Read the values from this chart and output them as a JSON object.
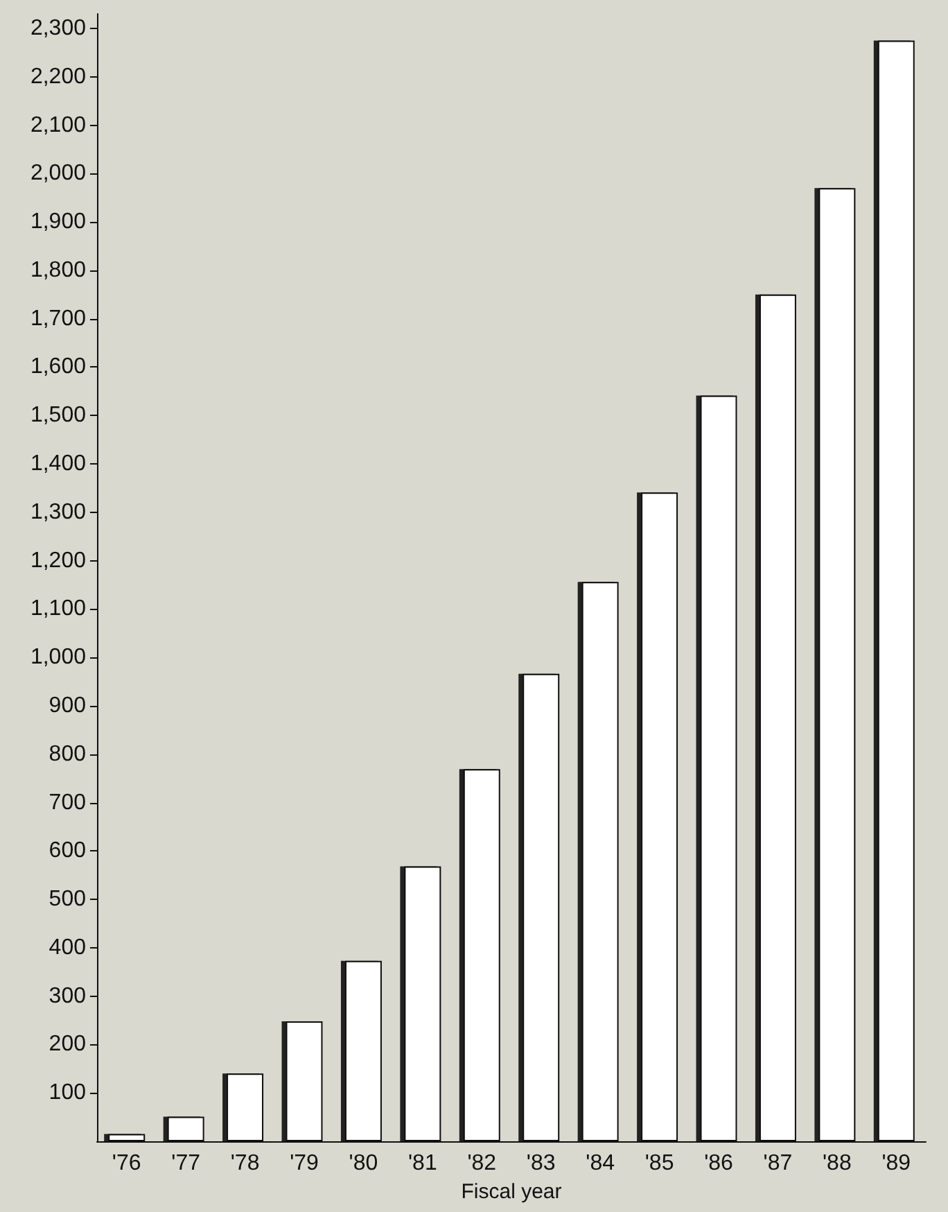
{
  "chart_data": {
    "type": "bar",
    "xlabel": "Fiscal year",
    "categories": [
      "'76",
      "'77",
      "'78",
      "'79",
      "'80",
      "'81",
      "'82",
      "'83",
      "'84",
      "'85",
      "'86",
      "'87",
      "'88",
      "'89"
    ],
    "values": [
      15,
      51,
      140,
      248,
      373,
      568,
      769,
      966,
      1156,
      1341,
      1541,
      1750,
      1970,
      2275
    ],
    "color": "#ffffff",
    "ylim": [
      0,
      2330
    ],
    "yticks": [
      100,
      200,
      300,
      400,
      500,
      600,
      700,
      800,
      900,
      {
        "value": 1000,
        "label": "1,000"
      },
      {
        "value": 1100,
        "label": "1,100"
      },
      {
        "value": 1200,
        "label": "1,200"
      },
      {
        "value": 1300,
        "label": "1,300"
      },
      {
        "value": 1400,
        "label": "1,400"
      },
      {
        "value": 1500,
        "label": "1,500"
      },
      {
        "value": 1600,
        "label": "1,600"
      },
      {
        "value": 1700,
        "label": "1,700"
      },
      {
        "value": 1800,
        "label": "1,800"
      },
      {
        "value": 1900,
        "label": "1,900"
      },
      {
        "value": 2000,
        "label": "2,000"
      },
      {
        "value": 2100,
        "label": "2,100"
      },
      {
        "value": 2200,
        "label": "2,200"
      },
      {
        "value": 2300,
        "label": "2,300"
      }
    ],
    "grid": false
  }
}
